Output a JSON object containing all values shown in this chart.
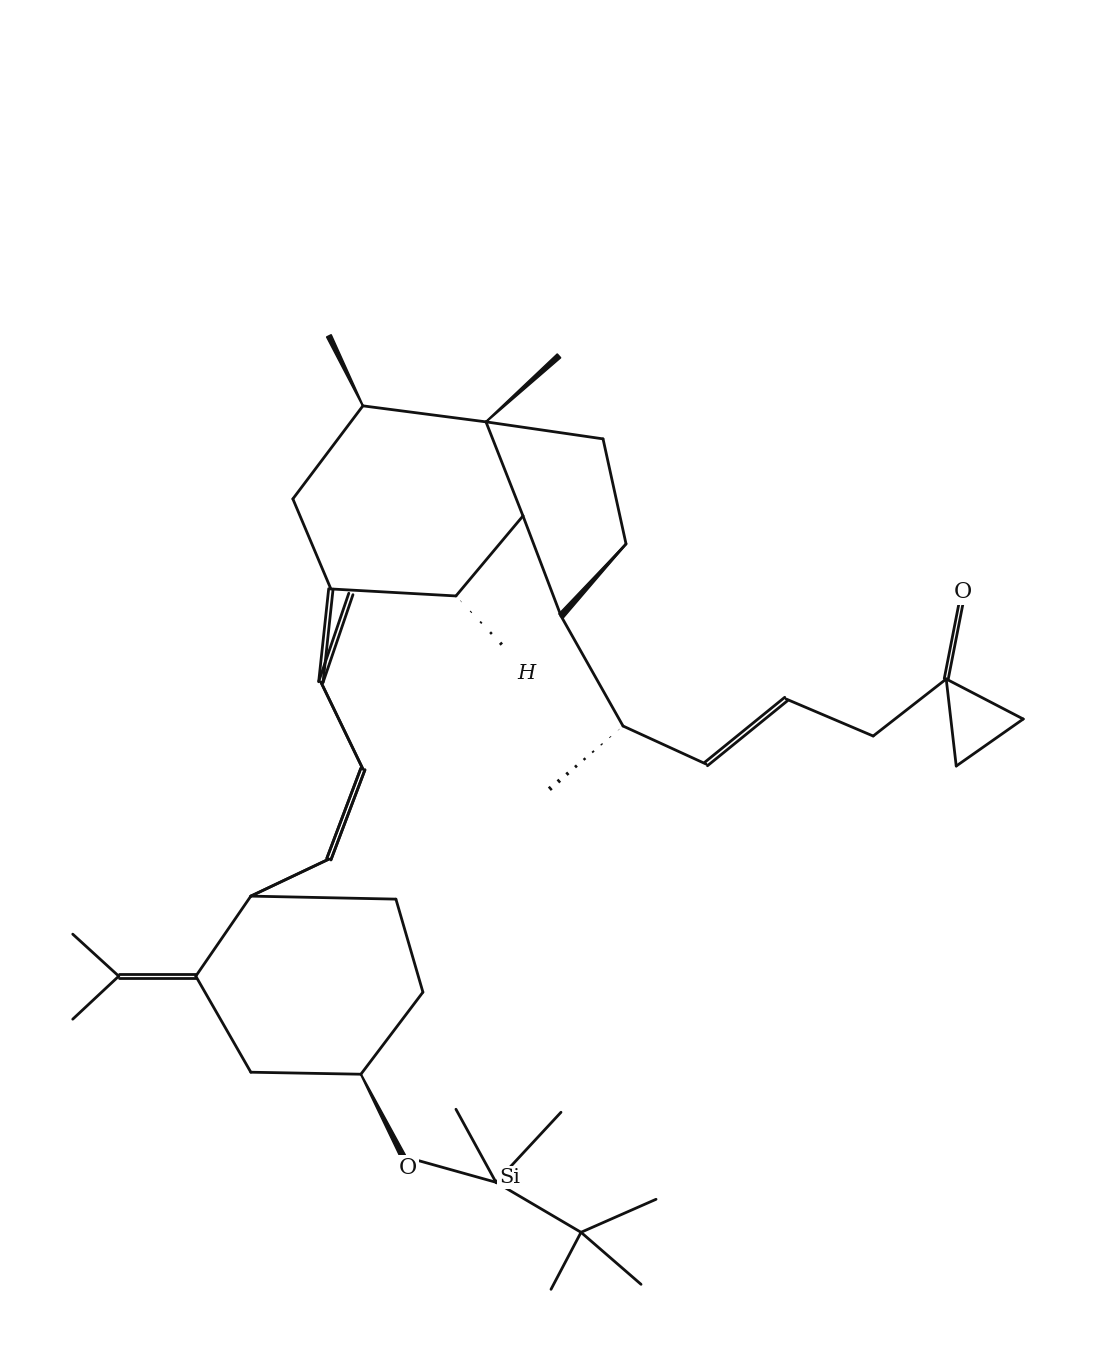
{
  "bg": "#ffffff",
  "lc": "#111111",
  "lw": 2.0,
  "figsize": [
    11.02,
    13.58
  ],
  "dpi": 100,
  "xlim": [
    -0.5,
    10.5
  ],
  "ylim": [
    -1.0,
    12.5
  ]
}
